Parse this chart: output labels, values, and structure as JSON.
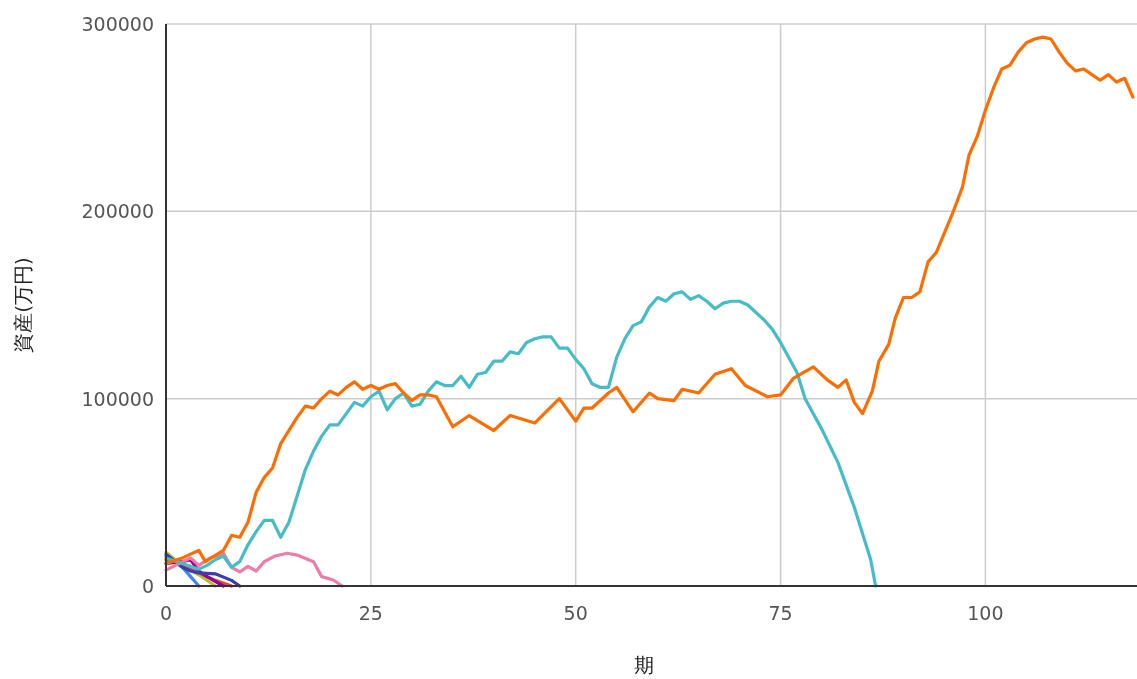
{
  "chart_data": {
    "type": "line",
    "xlabel": "期",
    "ylabel": "資産(万円)",
    "xlim": [
      0,
      118.5
    ],
    "ylim": [
      0,
      300000
    ],
    "xticks": [
      0,
      25,
      50,
      75,
      100
    ],
    "yticks": [
      0,
      100000,
      200000,
      300000
    ],
    "grid": true,
    "marker": "none",
    "line_style": "solid",
    "series": [
      {
        "color": "#4285f4",
        "x": [
          0,
          2,
          3,
          4
        ],
        "values": [
          16000,
          10000,
          5000,
          0
        ]
      },
      {
        "color": "#b5c327",
        "x": [
          0,
          2,
          4,
          6
        ],
        "values": [
          18000,
          11000,
          6000,
          0
        ]
      },
      {
        "color": "#ea4335",
        "x": [
          0,
          2,
          4,
          6,
          8
        ],
        "values": [
          14000,
          11000,
          7000,
          3000,
          0
        ]
      },
      {
        "color": "#990099",
        "x": [
          0,
          2,
          3,
          4,
          5,
          7
        ],
        "values": [
          12000,
          13000,
          14000,
          8000,
          5000,
          0
        ]
      },
      {
        "color": "#3b3eac",
        "x": [
          0,
          2,
          3,
          4,
          6,
          8,
          9
        ],
        "values": [
          17000,
          10000,
          8000,
          7000,
          6500,
          3000,
          0
        ]
      },
      {
        "color": "#f07ba8",
        "x": [
          0,
          3,
          4,
          5.4,
          7,
          8,
          9,
          10,
          11,
          12,
          13.3,
          14.8,
          16,
          18,
          19,
          20.4,
          21.5
        ],
        "values": [
          8500,
          15000,
          11000,
          15000,
          17500,
          10000,
          7500,
          10500,
          8000,
          13000,
          16000,
          17500,
          16500,
          13000,
          5000,
          3200,
          0
        ]
      },
      {
        "color": "#46bdc6",
        "x": [
          0,
          2,
          4,
          5,
          6,
          7,
          8,
          9,
          10,
          11,
          12,
          13,
          14,
          15,
          16,
          17,
          18,
          19,
          20,
          21,
          22,
          23,
          24,
          25,
          26,
          27,
          28,
          29,
          30,
          31,
          32,
          33,
          34,
          35,
          36,
          37,
          38,
          39,
          40,
          41,
          42,
          43,
          44,
          45,
          46,
          47,
          48,
          49,
          50,
          51,
          52,
          53,
          54,
          55,
          56,
          57,
          58,
          59,
          60,
          61,
          62,
          63,
          64,
          65,
          66,
          67,
          68,
          69,
          70,
          71,
          72,
          73,
          74,
          75,
          76,
          77,
          78,
          79,
          80,
          81,
          82,
          83,
          84,
          85,
          86,
          86.6
        ],
        "values": [
          15000,
          12000,
          9000,
          11000,
          14000,
          16000,
          10000,
          13000,
          22000,
          29000,
          35000,
          35000,
          26000,
          34000,
          48000,
          62000,
          72000,
          80000,
          86000,
          86000,
          92000,
          98000,
          96000,
          101000,
          104000,
          94000,
          100000,
          103000,
          96000,
          97000,
          104000,
          109000,
          107000,
          107000,
          112000,
          106000,
          113000,
          114000,
          120000,
          120000,
          125000,
          124000,
          130000,
          132000,
          133000,
          133000,
          127000,
          127000,
          121000,
          116000,
          108000,
          106000,
          106000,
          122000,
          132000,
          139000,
          141000,
          149000,
          154000,
          152000,
          156000,
          157000,
          153000,
          155000,
          152000,
          148000,
          151000,
          152000,
          152000,
          150000,
          146000,
          142000,
          137000,
          130000,
          122000,
          114000,
          100000,
          92000,
          84000,
          75000,
          66000,
          54000,
          42000,
          28000,
          14000,
          0
        ]
      },
      {
        "color": "#ff6d01",
        "x": [
          0,
          2,
          4,
          4.8,
          7,
          8,
          9,
          10,
          11,
          12,
          13,
          14,
          16,
          17,
          18,
          19,
          20,
          21,
          22,
          23,
          24,
          25,
          26,
          27,
          28,
          29,
          30,
          31,
          32,
          33,
          35,
          37,
          40,
          42,
          45,
          48,
          50,
          51,
          52,
          54,
          55,
          57,
          59,
          60,
          62,
          63,
          65,
          67,
          69,
          70.7,
          73.4,
          75,
          76.6,
          79,
          80.7,
          82,
          83,
          84,
          85,
          86.2,
          87,
          88.2,
          89,
          90,
          91,
          92,
          93,
          94,
          96,
          97.2,
          98,
          99,
          100,
          101,
          102,
          103,
          104,
          105,
          106,
          107,
          108,
          109,
          110,
          111,
          112,
          113,
          114,
          115,
          116,
          117,
          118
        ],
        "values": [
          12000,
          15000,
          19000,
          13000,
          19000,
          27000,
          26000,
          34000,
          50000,
          58000,
          63000,
          76000,
          90000,
          96000,
          95000,
          100000,
          104000,
          102000,
          106000,
          109000,
          105000,
          107000,
          105000,
          107000,
          108000,
          103000,
          99000,
          102000,
          102000,
          101000,
          85000,
          91000,
          83000,
          91000,
          87000,
          100000,
          88000,
          95000,
          95000,
          103000,
          106000,
          93000,
          103000,
          100000,
          99000,
          105000,
          103000,
          113000,
          116000,
          107000,
          101000,
          102000,
          111000,
          117000,
          110000,
          106000,
          110000,
          98000,
          92000,
          104000,
          120000,
          129000,
          143000,
          154000,
          154000,
          157000,
          173000,
          178000,
          199000,
          213000,
          230000,
          240000,
          254000,
          266000,
          276000,
          278000,
          285000,
          290000,
          292000,
          293000,
          292000,
          285000,
          279000,
          275000,
          276000,
          273000,
          270000,
          273000,
          269000,
          271000,
          261000
        ]
      }
    ]
  }
}
